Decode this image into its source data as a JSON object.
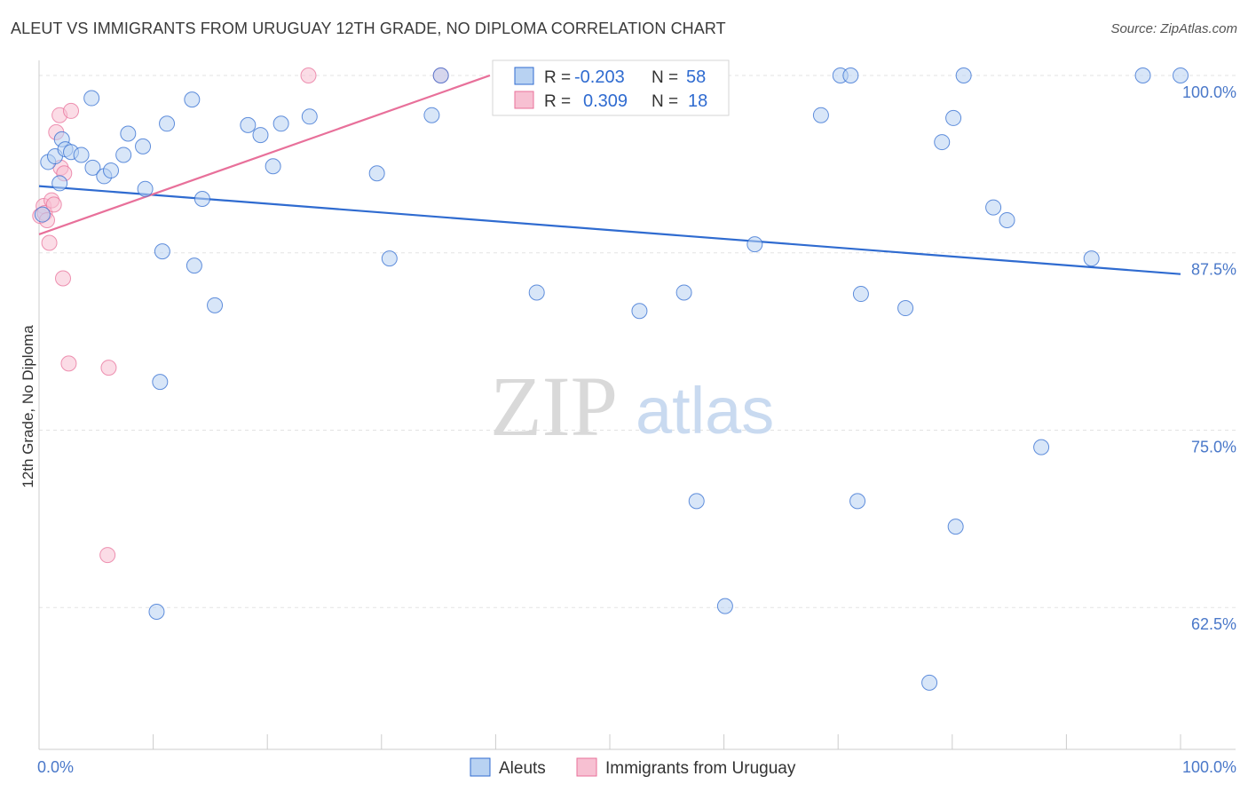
{
  "title": "ALEUT VS IMMIGRANTS FROM URUGUAY 12TH GRADE, NO DIPLOMA CORRELATION CHART",
  "source": "Source: ZipAtlas.com",
  "watermark": {
    "zip": "ZIP",
    "atlas": "atlas"
  },
  "colors": {
    "blue": "#2f6bd0",
    "blue_fill": "#b8d2f2",
    "pink": "#e8709a",
    "pink_fill": "#f7c0d2",
    "grid": "#e3e3e3",
    "axis": "#cccccc",
    "tick_label": "#4a78c9"
  },
  "stats": {
    "rows": [
      {
        "r_label": "R =",
        "r_value": "-0.203",
        "n_label": "N =",
        "n_value": "58"
      },
      {
        "r_label": "R =",
        "r_value": "0.309",
        "n_label": "N =",
        "n_value": "18"
      }
    ]
  },
  "chart_data": {
    "type": "scatter",
    "title": "ALEUT VS IMMIGRANTS FROM URUGUAY 12TH GRADE, NO DIPLOMA CORRELATION CHART",
    "xlabel": "",
    "ylabel": "12th Grade, No Diploma",
    "xlim": [
      0,
      100
    ],
    "ylim": [
      52.5,
      101.5
    ],
    "x_tick_labels": [
      {
        "value": 0,
        "label": "0.0%"
      },
      {
        "value": 100,
        "label": "100.0%"
      }
    ],
    "y_ticks": [
      {
        "value": 100,
        "label": "100.0%"
      },
      {
        "value": 87.5,
        "label": "87.5%"
      },
      {
        "value": 75,
        "label": "75.0%"
      },
      {
        "value": 62.5,
        "label": "62.5%"
      }
    ],
    "grid": true,
    "legend_position": "bottom-center",
    "series": [
      {
        "name": "Aleuts",
        "color": "#2f6bd0",
        "fill": "#b8d2f2",
        "r": -0.203,
        "n": 58,
        "trend": {
          "x": [
            0,
            100
          ],
          "y": [
            92.2,
            86.0
          ]
        },
        "points": [
          [
            0.8,
            93.9
          ],
          [
            1.4,
            94.3
          ],
          [
            1.8,
            92.4
          ],
          [
            2.0,
            95.5
          ],
          [
            2.3,
            94.8
          ],
          [
            2.8,
            94.6
          ],
          [
            3.7,
            94.4
          ],
          [
            4.6,
            98.4
          ],
          [
            4.7,
            93.5
          ],
          [
            5.7,
            92.9
          ],
          [
            6.3,
            93.3
          ],
          [
            7.4,
            94.4
          ],
          [
            7.8,
            95.9
          ],
          [
            9.1,
            95.0
          ],
          [
            9.3,
            92.0
          ],
          [
            10.6,
            78.4
          ],
          [
            10.8,
            87.6
          ],
          [
            11.2,
            96.6
          ],
          [
            13.4,
            98.3
          ],
          [
            13.6,
            86.6
          ],
          [
            14.3,
            91.3
          ],
          [
            15.4,
            83.8
          ],
          [
            18.3,
            96.5
          ],
          [
            19.4,
            95.8
          ],
          [
            20.5,
            93.6
          ],
          [
            21.2,
            96.6
          ],
          [
            23.7,
            97.1
          ],
          [
            29.6,
            93.1
          ],
          [
            30.7,
            87.1
          ],
          [
            34.4,
            97.2
          ],
          [
            35.2,
            100.0
          ],
          [
            43.6,
            84.7
          ],
          [
            47.3,
            100.0
          ],
          [
            52.6,
            83.4
          ],
          [
            55.8,
            100.0
          ],
          [
            56.5,
            84.7
          ],
          [
            57.6,
            70.0
          ],
          [
            60.1,
            62.6
          ],
          [
            62.7,
            88.1
          ],
          [
            68.5,
            97.2
          ],
          [
            70.2,
            100.0
          ],
          [
            71.1,
            100.0
          ],
          [
            71.7,
            70.0
          ],
          [
            72.0,
            84.6
          ],
          [
            75.9,
            83.6
          ],
          [
            78.0,
            57.2
          ],
          [
            79.1,
            95.3
          ],
          [
            80.1,
            97.0
          ],
          [
            80.3,
            68.2
          ],
          [
            81.0,
            100.0
          ],
          [
            83.6,
            90.7
          ],
          [
            84.8,
            89.8
          ],
          [
            87.8,
            73.8
          ],
          [
            92.2,
            87.1
          ],
          [
            96.7,
            100.0
          ],
          [
            100.0,
            100.0
          ],
          [
            10.3,
            62.2
          ],
          [
            0.3,
            90.2
          ]
        ]
      },
      {
        "name": "Immigrants from Uruguay",
        "color": "#e8709a",
        "fill": "#f7c0d2",
        "r": 0.309,
        "n": 18,
        "trend": {
          "x": [
            0,
            39.5
          ],
          "y": [
            88.8,
            100.0
          ]
        },
        "points": [
          [
            0.1,
            90.1
          ],
          [
            0.4,
            90.8
          ],
          [
            0.5,
            90.3
          ],
          [
            0.9,
            88.2
          ],
          [
            1.1,
            91.2
          ],
          [
            1.3,
            90.9
          ],
          [
            1.5,
            96.0
          ],
          [
            1.9,
            93.5
          ],
          [
            1.8,
            97.2
          ],
          [
            2.1,
            85.7
          ],
          [
            2.2,
            93.1
          ],
          [
            2.6,
            79.7
          ],
          [
            2.8,
            97.5
          ],
          [
            6.1,
            79.4
          ],
          [
            6.0,
            66.2
          ],
          [
            23.6,
            100.0
          ],
          [
            35.2,
            100.0
          ],
          [
            0.7,
            89.8
          ]
        ]
      }
    ]
  }
}
